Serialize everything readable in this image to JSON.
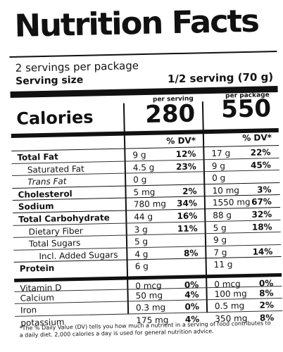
{
  "header": {
    "title": "Nutrition Facts",
    "servings": "2 servings per package",
    "serving_size_label": "Serving size",
    "serving_size_value": "1/2 serving (70 g)"
  },
  "columns": {
    "per_serving": "per serving",
    "per_package": "per package",
    "dv": "% DV*"
  },
  "calories": {
    "label": "Calories",
    "per_serving": "280",
    "per_package": "550"
  },
  "nutrients": [
    {
      "name": "Total Fat",
      "bold": true,
      "indent": 0,
      "amt1": "9 g",
      "dv1": "12%",
      "amt2": "17 g",
      "dv2": "22%"
    },
    {
      "name": "Saturated Fat",
      "bold": false,
      "indent": 1,
      "amt1": "4.5 g",
      "dv1": "23%",
      "amt2": "9 g",
      "dv2": "45%"
    },
    {
      "name": "Trans Fat",
      "bold": false,
      "indent": 1,
      "italic": true,
      "amt1": "0 g",
      "dv1": "",
      "amt2": "0 g",
      "dv2": ""
    },
    {
      "name": "Cholesterol",
      "bold": true,
      "indent": 0,
      "amt1": "5 mg",
      "dv1": "2%",
      "amt2": "10 mg",
      "dv2": "3%"
    },
    {
      "name": "Sodium",
      "bold": true,
      "indent": 0,
      "amt1": "780 mg",
      "dv1": "34%",
      "amt2": "1550 mg",
      "dv2": "67%"
    },
    {
      "name": "Total Carbohydrate",
      "bold": true,
      "indent": 0,
      "amt1": "44 g",
      "dv1": "16%",
      "amt2": "88 g",
      "dv2": "32%"
    },
    {
      "name": "Dietary Fiber",
      "bold": false,
      "indent": 1,
      "amt1": "3 g",
      "dv1": "11%",
      "amt2": "5 g",
      "dv2": "18%"
    },
    {
      "name": "Total Sugars",
      "bold": false,
      "indent": 1,
      "amt1": "5 g",
      "dv1": "",
      "amt2": "9 g",
      "dv2": ""
    },
    {
      "name": "Incl. Added Sugars",
      "bold": false,
      "indent": 2,
      "amt1": "4 g",
      "dv1": "8%",
      "amt2": "7 g",
      "dv2": "14%"
    },
    {
      "name": "Protein",
      "bold": true,
      "indent": 0,
      "amt1": "6 g",
      "dv1": "",
      "amt2": "11 g",
      "dv2": ""
    },
    {
      "name": "Vitamin D",
      "bold": false,
      "indent": 0,
      "thick": true,
      "amt1": "0 mcg",
      "dv1": "0%",
      "amt2": "0 mcg",
      "dv2": "0%"
    },
    {
      "name": "Calcium",
      "bold": false,
      "indent": 0,
      "amt1": "50 mg",
      "dv1": "4%",
      "amt2": "100 mg",
      "dv2": "8%"
    },
    {
      "name": "Iron",
      "bold": false,
      "indent": 0,
      "amt1": "0.3 mg",
      "dv1": "0%",
      "amt2": "0.5 mg",
      "dv2": "2%"
    },
    {
      "name": "potassium",
      "bold": false,
      "indent": 0,
      "amt1": "175 mg",
      "dv1": "4%",
      "amt2": "350 mg",
      "dv2": "8%"
    }
  ],
  "footnote": "*The % Daily Value (DV) tells you how much a nutrient in a serving of food contributes to a daily diet. 2,000 calories a day is used for general nutrition advice."
}
